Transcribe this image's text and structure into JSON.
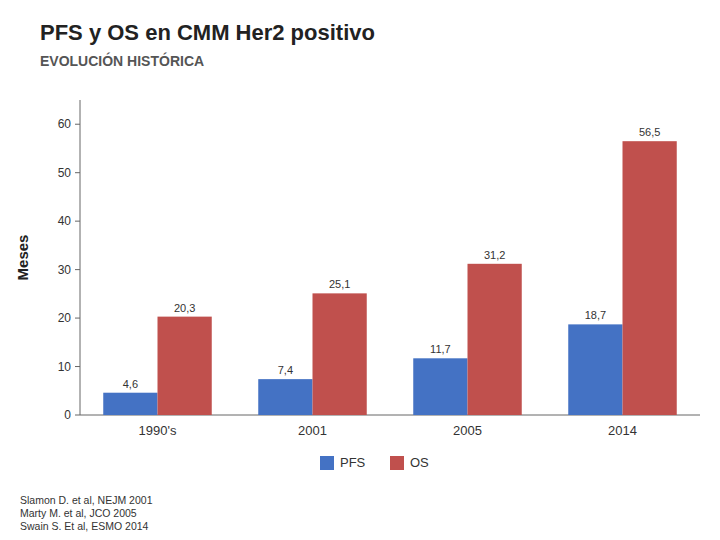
{
  "chart_data": {
    "type": "bar",
    "title": "PFS y OS en CMM Her2 positivo",
    "subtitle": "EVOLUCIÓN HISTÓRICA",
    "ylabel": "Meses",
    "categories": [
      "1990's",
      "2001",
      "2005",
      "2014"
    ],
    "series": [
      {
        "name": "PFS",
        "color": "#4472C4",
        "values": [
          4.6,
          7.4,
          11.7,
          18.7
        ],
        "value_labels": [
          "4,6",
          "7,4",
          "11,7",
          "18,7"
        ]
      },
      {
        "name": "OS",
        "color": "#C0504D",
        "values": [
          20.3,
          25.1,
          31.2,
          56.5
        ],
        "value_labels": [
          "20,3",
          "25,1",
          "31,2",
          "56,5"
        ]
      }
    ],
    "ylim": [
      0,
      65
    ],
    "yticks": [
      0,
      10,
      20,
      30,
      40,
      50,
      60
    ],
    "grid": false,
    "legend": "bottom",
    "data_labels": true,
    "annotations": [
      "Slamon D. et al, NEJM 2001",
      "Marty M. et al, JCO 2005",
      "Swain S. Et al, ESMO 2014"
    ]
  }
}
